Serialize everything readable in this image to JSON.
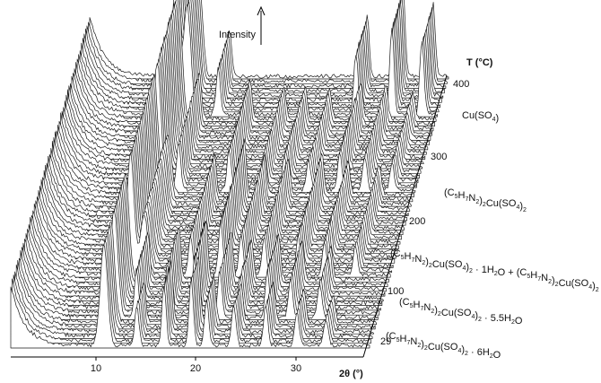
{
  "chart_data": {
    "type": "line",
    "title": "",
    "xlabel": "2θ (°)",
    "ylabel": "Intensity",
    "zlabel": "T (°C)",
    "xlim": [
      0,
      37
    ],
    "x_ticks": [
      "10",
      "20",
      "30"
    ],
    "t_ticks": [
      "29",
      "100",
      "200",
      "300",
      "400"
    ],
    "tlim": [
      29,
      420
    ],
    "phases": [
      {
        "name": "Cu(SO4)",
        "t_range": [
          360,
          420
        ],
        "segments": [
          [
            "Cu(SO",
            ""
          ],
          [
            "4",
            "sub"
          ],
          [
            ")",
            ""
          ]
        ]
      },
      {
        "name": "(C5H7N2)2Cu(SO4)2",
        "t_range": [
          250,
          360
        ],
        "segments": [
          [
            "(C",
            ""
          ],
          [
            "5",
            "sub"
          ],
          [
            "H",
            ""
          ],
          [
            "7",
            "sub"
          ],
          [
            "N",
            ""
          ],
          [
            "2",
            "sub"
          ],
          [
            ")",
            ""
          ],
          [
            "2",
            "sub"
          ],
          [
            "Cu(SO",
            ""
          ],
          [
            "4",
            "sub"
          ],
          [
            ")",
            ""
          ],
          [
            "2",
            "sub"
          ]
        ]
      },
      {
        "name": "(C5H7N2)2Cu(SO4)2 · 1H2O + (C5H7N2)2Cu(SO4)2",
        "t_range": [
          130,
          250
        ],
        "segments": [
          [
            "(C",
            ""
          ],
          [
            "5",
            "sub"
          ],
          [
            "H",
            ""
          ],
          [
            "7",
            "sub"
          ],
          [
            "N",
            ""
          ],
          [
            "2",
            "sub"
          ],
          [
            ")",
            ""
          ],
          [
            "2",
            "sub"
          ],
          [
            "Cu(SO",
            ""
          ],
          [
            "4",
            "sub"
          ],
          [
            ")",
            ""
          ],
          [
            "2",
            "sub"
          ],
          [
            " · 1H",
            ""
          ],
          [
            "2",
            "sub"
          ],
          [
            "O + (C",
            ""
          ],
          [
            "5",
            "sub"
          ],
          [
            "H",
            ""
          ],
          [
            "7",
            "sub"
          ],
          [
            "N",
            ""
          ],
          [
            "2",
            "sub"
          ],
          [
            ")",
            ""
          ],
          [
            "2",
            "sub"
          ],
          [
            "Cu(SO",
            ""
          ],
          [
            "4",
            "sub"
          ],
          [
            ")",
            ""
          ],
          [
            "2",
            "sub"
          ]
        ]
      },
      {
        "name": "(C5H7N2)2Cu(SO4)2 · 5.5H2O",
        "t_range": [
          70,
          130
        ],
        "segments": [
          [
            "(C",
            ""
          ],
          [
            "5",
            "sub"
          ],
          [
            "H",
            ""
          ],
          [
            "7",
            "sub"
          ],
          [
            "N",
            ""
          ],
          [
            "2",
            "sub"
          ],
          [
            ")",
            ""
          ],
          [
            "2",
            "sub"
          ],
          [
            "Cu(SO",
            ""
          ],
          [
            "4",
            "sub"
          ],
          [
            ")",
            ""
          ],
          [
            "2",
            "sub"
          ],
          [
            " · 5.5H",
            ""
          ],
          [
            "2",
            "sub"
          ],
          [
            "O",
            ""
          ]
        ]
      },
      {
        "name": "(C5H7N2)2Cu(SO4)2 · 6H2O",
        "t_range": [
          29,
          70
        ],
        "segments": [
          [
            "(C",
            ""
          ],
          [
            "5",
            "sub"
          ],
          [
            "H",
            ""
          ],
          [
            "7",
            "sub"
          ],
          [
            "N",
            ""
          ],
          [
            "2",
            "sub"
          ],
          [
            ")",
            ""
          ],
          [
            "2",
            "sub"
          ],
          [
            "Cu(SO",
            ""
          ],
          [
            "4",
            "sub"
          ],
          [
            ")",
            ""
          ],
          [
            "2",
            "sub"
          ],
          [
            " · 6H",
            ""
          ],
          [
            "2",
            "sub"
          ],
          [
            "O",
            ""
          ]
        ]
      }
    ],
    "peaks_by_phase": [
      {
        "phase": "Cu(SO4)",
        "peaks": [
          {
            "x": 10.0,
            "h": 1.0
          },
          {
            "x": 11.2,
            "h": 0.8
          },
          {
            "x": 14.4,
            "h": 0.35
          },
          {
            "x": 28.6,
            "h": 0.45
          },
          {
            "x": 32.3,
            "h": 0.65
          },
          {
            "x": 35.4,
            "h": 0.55
          }
        ]
      },
      {
        "phase": "(C5H7N2)2Cu(SO4)2",
        "peaks": [
          {
            "x": 10.4,
            "h": 0.95
          },
          {
            "x": 12.6,
            "h": 0.35
          },
          {
            "x": 17.8,
            "h": 0.3
          },
          {
            "x": 21.3,
            "h": 0.25
          },
          {
            "x": 23.5,
            "h": 0.25
          },
          {
            "x": 26.0,
            "h": 0.22
          },
          {
            "x": 29.2,
            "h": 0.28
          },
          {
            "x": 31.8,
            "h": 0.25
          },
          {
            "x": 34.6,
            "h": 0.2
          }
        ]
      },
      {
        "phase": "(C5H7N2)2Cu(SO4)2 · 1H2O + (C5H7N2)2Cu(SO4)2",
        "peaks": [
          {
            "x": 10.2,
            "h": 0.9
          },
          {
            "x": 11.6,
            "h": 0.45
          },
          {
            "x": 16.4,
            "h": 0.3
          },
          {
            "x": 19.5,
            "h": 0.4
          },
          {
            "x": 21.6,
            "h": 0.3
          },
          {
            "x": 24.0,
            "h": 0.28
          },
          {
            "x": 27.5,
            "h": 0.3
          },
          {
            "x": 30.2,
            "h": 0.25
          },
          {
            "x": 33.4,
            "h": 0.22
          }
        ]
      },
      {
        "phase": "(C5H7N2)2Cu(SO4)2 · 5.5H2O",
        "peaks": [
          {
            "x": 9.8,
            "h": 0.8
          },
          {
            "x": 12.1,
            "h": 0.35
          },
          {
            "x": 15.3,
            "h": 0.4
          },
          {
            "x": 18.1,
            "h": 0.45
          },
          {
            "x": 20.7,
            "h": 0.35
          },
          {
            "x": 22.8,
            "h": 0.3
          },
          {
            "x": 25.6,
            "h": 0.35
          },
          {
            "x": 28.0,
            "h": 0.3
          },
          {
            "x": 31.0,
            "h": 0.25
          }
        ]
      },
      {
        "phase": "(C5H7N2)2Cu(SO4)2 · 6H2O",
        "peaks": [
          {
            "x": 9.6,
            "h": 0.75
          },
          {
            "x": 13.0,
            "h": 0.3
          },
          {
            "x": 15.8,
            "h": 0.45
          },
          {
            "x": 18.6,
            "h": 0.5
          },
          {
            "x": 20.2,
            "h": 0.35
          },
          {
            "x": 23.0,
            "h": 0.3
          },
          {
            "x": 26.3,
            "h": 0.3
          },
          {
            "x": 29.5,
            "h": 0.25
          },
          {
            "x": 32.5,
            "h": 0.2
          }
        ]
      }
    ],
    "grid": false,
    "legend": "none",
    "colors": {
      "fill": "#ffffff",
      "line": "#1a1a1a",
      "axis": "#000000"
    }
  }
}
